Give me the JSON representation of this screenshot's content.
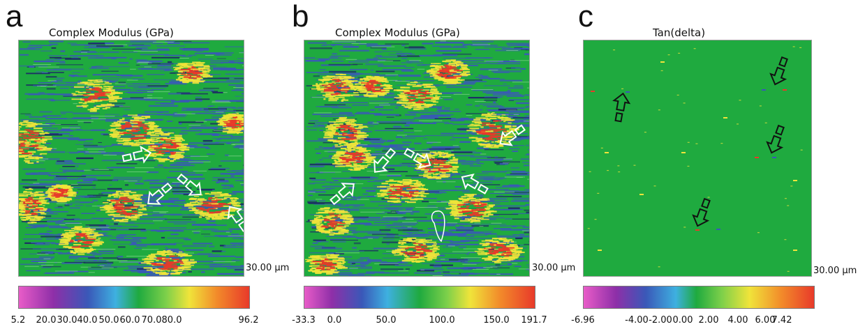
{
  "panels": [
    {
      "letter": "a",
      "title": "Complex Modulus (GPa)",
      "scale_label": "30.00 µm",
      "colorbar_ticks": [
        "5.2",
        "20.0",
        "30.0",
        "40.0",
        "50.0",
        "60.0",
        "70.0",
        "80.0",
        "96.2"
      ]
    },
    {
      "letter": "b",
      "title": "Complex Modulus (GPa)",
      "scale_label": "30.00 µm",
      "colorbar_ticks": [
        "-33.3",
        "0.0",
        "50.0",
        "100.0",
        "150.0",
        "191.7"
      ]
    },
    {
      "letter": "c",
      "title": "Tan(delta)",
      "scale_label": "30.00 µm",
      "colorbar_ticks": [
        "-6.96",
        "-4.00",
        "-2.00",
        "0.00",
        "2.00",
        "4.00",
        "6.00",
        "7.42"
      ]
    }
  ],
  "colors": {
    "map_green": "#1faa3f",
    "map_blue": "#3a58b8",
    "map_red": "#e83a2a",
    "map_yellow": "#f0e43a",
    "arrow_white": "#ffffff",
    "arrow_black": "#111111"
  },
  "icons": [
    "arrow-icon"
  ]
}
